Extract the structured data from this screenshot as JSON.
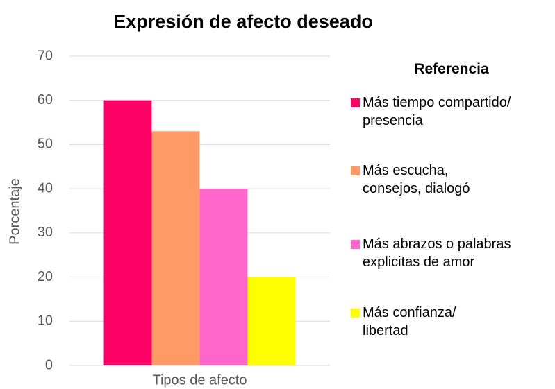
{
  "chart_data": {
    "type": "bar",
    "title": "Expresión de afecto deseado",
    "categories": [
      "Tipos de afecto"
    ],
    "y_label": "Porcentaje",
    "legend_title": "Referencia",
    "series": [
      {
        "name": "Más tiempo compartido/ presencia",
        "color": "#ff0066",
        "values": [
          60
        ]
      },
      {
        "name": "Más escucha, consejos, dialogó",
        "color": "#ff9966",
        "values": [
          53
        ]
      },
      {
        "name": "Más abrazos o palabras explicitas de amor",
        "color": "#ff66cc",
        "values": [
          40
        ]
      },
      {
        "name": "Más confianza/ libertad",
        "color": "#ffff00",
        "values": [
          20
        ]
      }
    ],
    "ylim": [
      0,
      70
    ],
    "yticks": [
      0,
      10,
      20,
      30,
      40,
      50,
      60,
      70
    ],
    "grid": true,
    "legend": "right"
  }
}
